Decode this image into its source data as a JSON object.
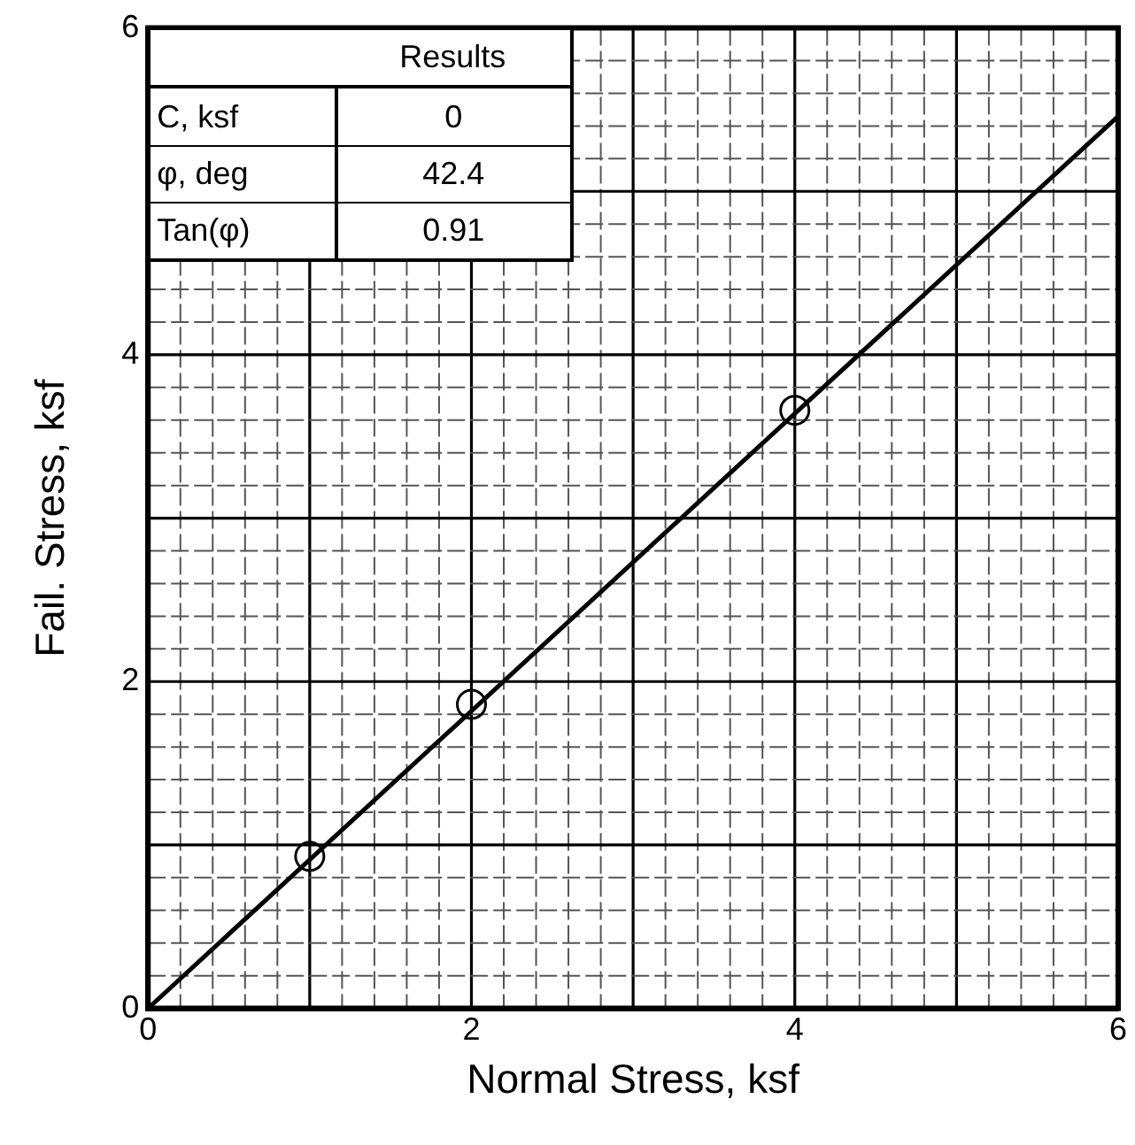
{
  "chart_data": {
    "type": "scatter",
    "xlabel": "Normal Stress, ksf",
    "ylabel": "Fail. Stress, ksf",
    "xlim": [
      0,
      6
    ],
    "ylim": [
      0,
      6
    ],
    "xticks": [
      0,
      {
        "value": 0.2,
        "label": null
      },
      {
        "value": 0.4,
        "label": null
      },
      {
        "value": 0.6,
        "label": null
      },
      {
        "value": 0.8,
        "label": null
      },
      {
        "value": 1,
        "label": null
      },
      {
        "value": 1.2,
        "label": null
      },
      {
        "value": 1.4,
        "label": null
      },
      {
        "value": 1.6,
        "label": null
      },
      {
        "value": 1.8,
        "label": null
      },
      2,
      {
        "value": 2.2,
        "label": null
      },
      {
        "value": 2.4,
        "label": null
      },
      {
        "value": 2.6,
        "label": null
      },
      {
        "value": 2.8,
        "label": null
      },
      {
        "value": 3,
        "label": null
      },
      {
        "value": 3.2,
        "label": null
      },
      {
        "value": 3.4,
        "label": null
      },
      {
        "value": 3.6,
        "label": null
      },
      {
        "value": 3.8,
        "label": null
      },
      4,
      {
        "value": 4.2,
        "label": null
      },
      {
        "value": 4.4,
        "label": null
      },
      {
        "value": 4.6,
        "label": null
      },
      {
        "value": 4.8,
        "label": null
      },
      {
        "value": 5,
        "label": null
      },
      {
        "value": 5.2,
        "label": null
      },
      {
        "value": 5.4,
        "label": null
      },
      {
        "value": 5.6,
        "label": null
      },
      {
        "value": 5.8,
        "label": null
      },
      6
    ],
    "yticks": [
      0,
      {
        "value": 0.2,
        "label": null
      },
      {
        "value": 0.4,
        "label": null
      },
      {
        "value": 0.6,
        "label": null
      },
      {
        "value": 0.8,
        "label": null
      },
      {
        "value": 1,
        "label": null
      },
      {
        "value": 1.2,
        "label": null
      },
      {
        "value": 1.4,
        "label": null
      },
      {
        "value": 1.6,
        "label": null
      },
      {
        "value": 1.8,
        "label": null
      },
      2,
      {
        "value": 2.2,
        "label": null
      },
      {
        "value": 2.4,
        "label": null
      },
      {
        "value": 2.6,
        "label": null
      },
      {
        "value": 2.8,
        "label": null
      },
      {
        "value": 3,
        "label": null
      },
      {
        "value": 3.2,
        "label": null
      },
      {
        "value": 3.4,
        "label": null
      },
      {
        "value": 3.6,
        "label": null
      },
      {
        "value": 3.8,
        "label": null
      },
      4,
      {
        "value": 4.2,
        "label": null
      },
      {
        "value": 4.4,
        "label": null
      },
      {
        "value": 4.6,
        "label": null
      },
      {
        "value": 4.8,
        "label": null
      },
      {
        "value": 5,
        "label": null
      },
      {
        "value": 5.2,
        "label": null
      },
      {
        "value": 5.4,
        "label": null
      },
      {
        "value": 5.6,
        "label": null
      },
      {
        "value": 5.8,
        "label": null
      },
      6
    ],
    "grid": true,
    "marker": "circle",
    "series": [
      {
        "x": [
          1,
          2,
          4
        ],
        "values": [
          0.93,
          1.86,
          3.66
        ],
        "color": "#000000"
      },
      {
        "type": "line",
        "x": [
          0,
          6
        ],
        "values": [
          0,
          5.46
        ],
        "color": "#000000",
        "marker": "none"
      }
    ],
    "annotations": [
      "Results",
      "C, ksf",
      "0",
      "φ, deg",
      "42.4",
      "Tan(φ)",
      "0.91"
    ]
  }
}
